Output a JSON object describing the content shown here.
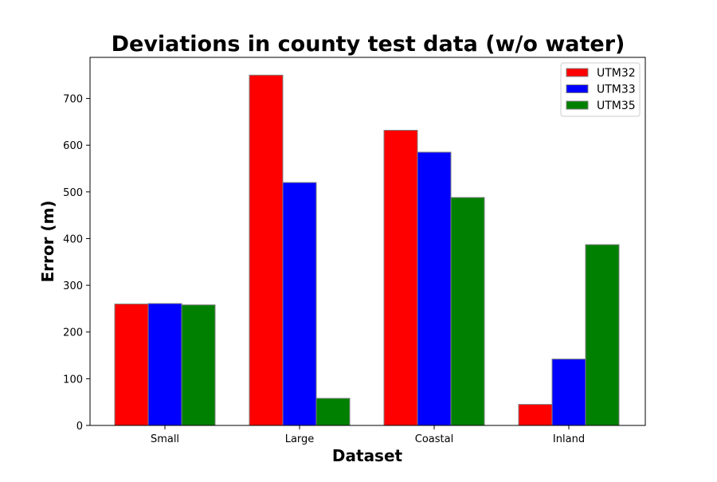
{
  "chart_data": {
    "type": "bar",
    "title": "Deviations in county test data (w/o water)",
    "xlabel": "Dataset",
    "ylabel": "Error (m)",
    "categories": [
      "Small",
      "Large",
      "Coastal",
      "Inland"
    ],
    "series": [
      {
        "name": "UTM32",
        "color": "#ff0000",
        "values": [
          260,
          750,
          632,
          45
        ]
      },
      {
        "name": "UTM33",
        "color": "#0000ff",
        "values": [
          261,
          520,
          585,
          142
        ]
      },
      {
        "name": "UTM35",
        "color": "#008000",
        "values": [
          258,
          58,
          488,
          387
        ]
      }
    ],
    "ylim": [
      0,
      788
    ],
    "yticks": [
      0,
      100,
      200,
      300,
      400,
      500,
      600,
      700
    ],
    "legend_position": "top-right",
    "grid": false
  }
}
